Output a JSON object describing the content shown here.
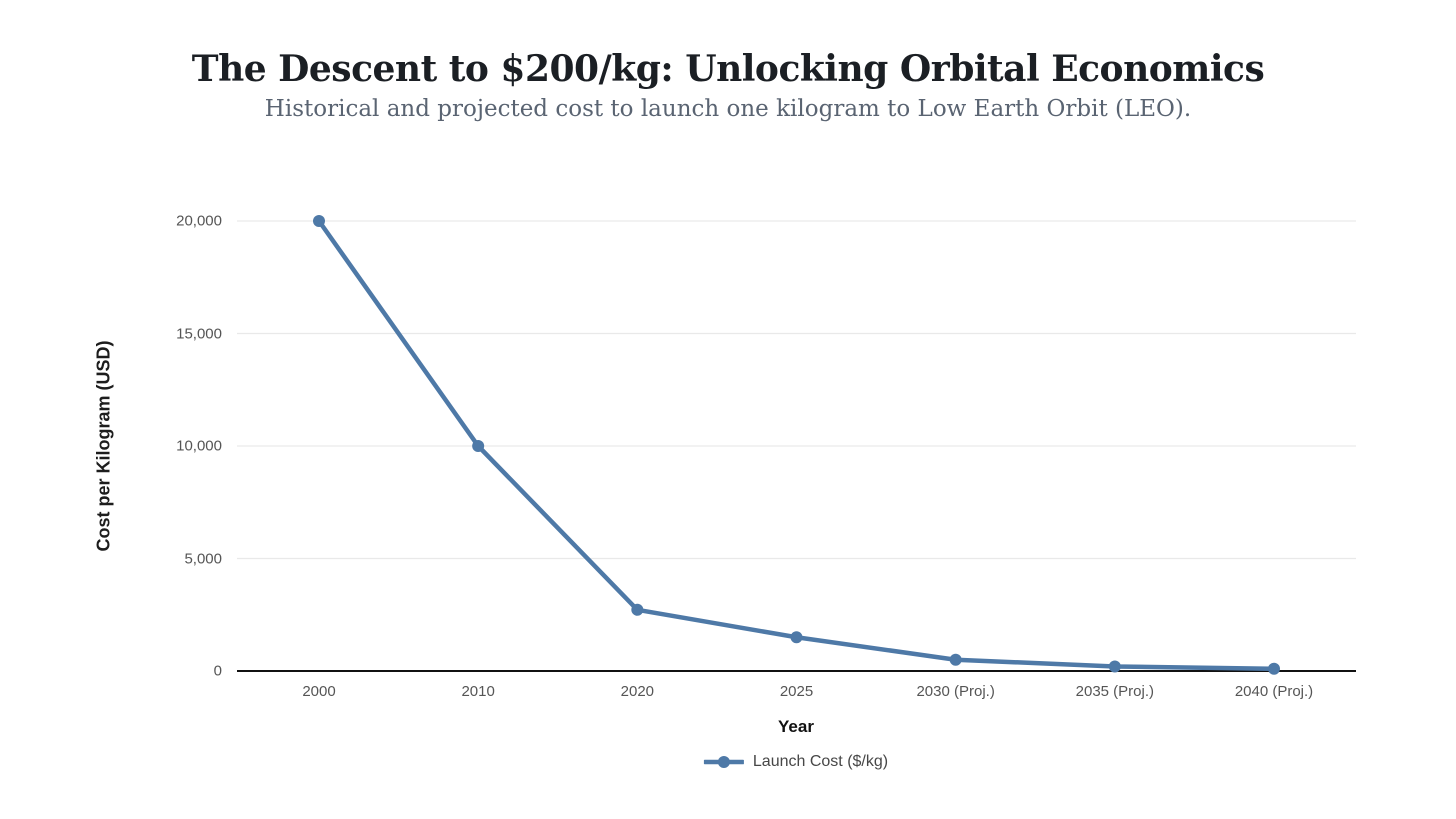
{
  "chart_data": {
    "type": "line",
    "title": "The Descent to $200/kg: Unlocking Orbital Economics",
    "subtitle": "Historical and projected cost to launch one kilogram to Low Earth Orbit (LEO).",
    "categories": [
      "2000",
      "2010",
      "2020",
      "2025",
      "2030 (Proj.)",
      "2035 (Proj.)",
      "2040 (Proj.)"
    ],
    "series": [
      {
        "name": "Launch Cost ($/kg)",
        "color": "#4e79a7",
        "values": [
          20000,
          10000,
          2720,
          1500,
          500,
          200,
          100
        ]
      }
    ],
    "xlabel": "Year",
    "ylabel": "Cost per Kilogram (USD)",
    "ylim": [
      0,
      20000
    ],
    "yticks": [
      {
        "value": 0,
        "label": "0"
      },
      {
        "value": 5000,
        "label": "5,000"
      },
      {
        "value": 10000,
        "label": "10,000"
      },
      {
        "value": 15000,
        "label": "15,000"
      },
      {
        "value": 20000,
        "label": "20,000"
      }
    ],
    "grid": true,
    "legend_position": "bottom",
    "colors": {
      "line": "#4e79a7",
      "marker": "#4878a8",
      "grid": "#e9e9e9",
      "axis_line": "#111111",
      "tick_text": "#555555",
      "title_text": "#1b1f24",
      "subtitle_text": "#5a6472",
      "legend_text": "#474747"
    }
  }
}
